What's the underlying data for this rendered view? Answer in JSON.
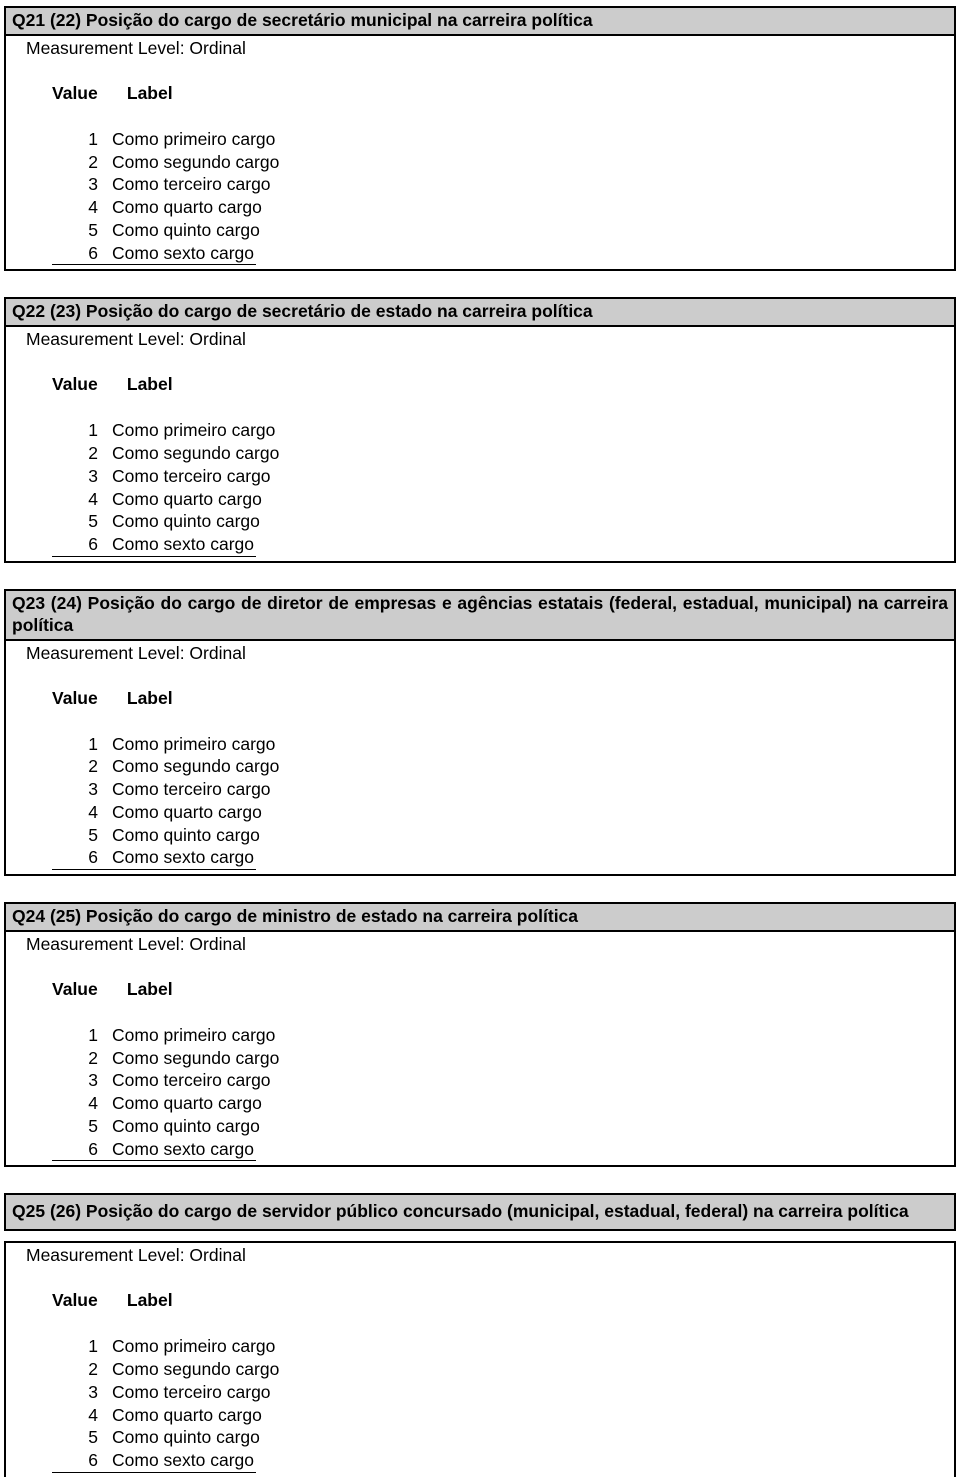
{
  "sections": [
    {
      "title": "Q21 (22) Posição do cargo de secretário municipal na carreira política",
      "measurement": "Measurement Level: Ordinal",
      "value_header": "Value",
      "label_header": "Label",
      "rows": [
        {
          "v": "1",
          "l": "Como primeiro cargo"
        },
        {
          "v": "2",
          "l": "Como segundo cargo"
        },
        {
          "v": "3",
          "l": "Como terceiro cargo"
        },
        {
          "v": "4",
          "l": "Como quarto cargo"
        },
        {
          "v": "5",
          "l": "Como quinto cargo"
        },
        {
          "v": "6",
          "l": "Como sexto cargo"
        }
      ]
    },
    {
      "title": "Q22 (23) Posição do cargo de secretário de estado na carreira política",
      "measurement": "Measurement Level: Ordinal",
      "value_header": "Value",
      "label_header": "Label",
      "rows": [
        {
          "v": "1",
          "l": "Como primeiro cargo"
        },
        {
          "v": "2",
          "l": "Como segundo cargo"
        },
        {
          "v": "3",
          "l": "Como terceiro cargo"
        },
        {
          "v": "4",
          "l": "Como quarto cargo"
        },
        {
          "v": "5",
          "l": "Como quinto cargo"
        },
        {
          "v": "6",
          "l": "Como sexto cargo"
        }
      ]
    },
    {
      "title": "Q23 (24) Posição do cargo de diretor de empresas e agências estatais (federal, estadual, municipal) na carreira política",
      "justify": true,
      "measurement": "Measurement Level: Ordinal",
      "value_header": "Value",
      "label_header": "Label",
      "rows": [
        {
          "v": "1",
          "l": "Como primeiro cargo"
        },
        {
          "v": "2",
          "l": "Como segundo cargo"
        },
        {
          "v": "3",
          "l": "Como terceiro cargo"
        },
        {
          "v": "4",
          "l": "Como quarto cargo"
        },
        {
          "v": "5",
          "l": "Como quinto cargo"
        },
        {
          "v": "6",
          "l": "Como sexto cargo"
        }
      ]
    },
    {
      "title": "Q24 (25) Posição do cargo de ministro de estado na carreira política",
      "measurement": "Measurement Level: Ordinal",
      "value_header": "Value",
      "label_header": "Label",
      "rows": [
        {
          "v": "1",
          "l": "Como primeiro cargo"
        },
        {
          "v": "2",
          "l": "Como segundo cargo"
        },
        {
          "v": "3",
          "l": "Como terceiro cargo"
        },
        {
          "v": "4",
          "l": "Como quarto cargo"
        },
        {
          "v": "5",
          "l": "Como quinto cargo"
        },
        {
          "v": "6",
          "l": "Como sexto cargo"
        }
      ]
    }
  ],
  "gap_section": {
    "title": "Q25 (26) Posição do cargo de servidor público concursado (municipal, estadual, federal) na carreira política",
    "measurement": "Measurement Level: Ordinal",
    "value_header": "Value",
    "label_header": "Label",
    "rows": [
      {
        "v": "1",
        "l": "Como primeiro cargo"
      },
      {
        "v": "2",
        "l": "Como segundo cargo"
      },
      {
        "v": "3",
        "l": "Como terceiro cargo"
      },
      {
        "v": "4",
        "l": "Como quarto cargo"
      },
      {
        "v": "5",
        "l": "Como quinto cargo"
      },
      {
        "v": "6",
        "l": "Como sexto cargo"
      }
    ]
  }
}
